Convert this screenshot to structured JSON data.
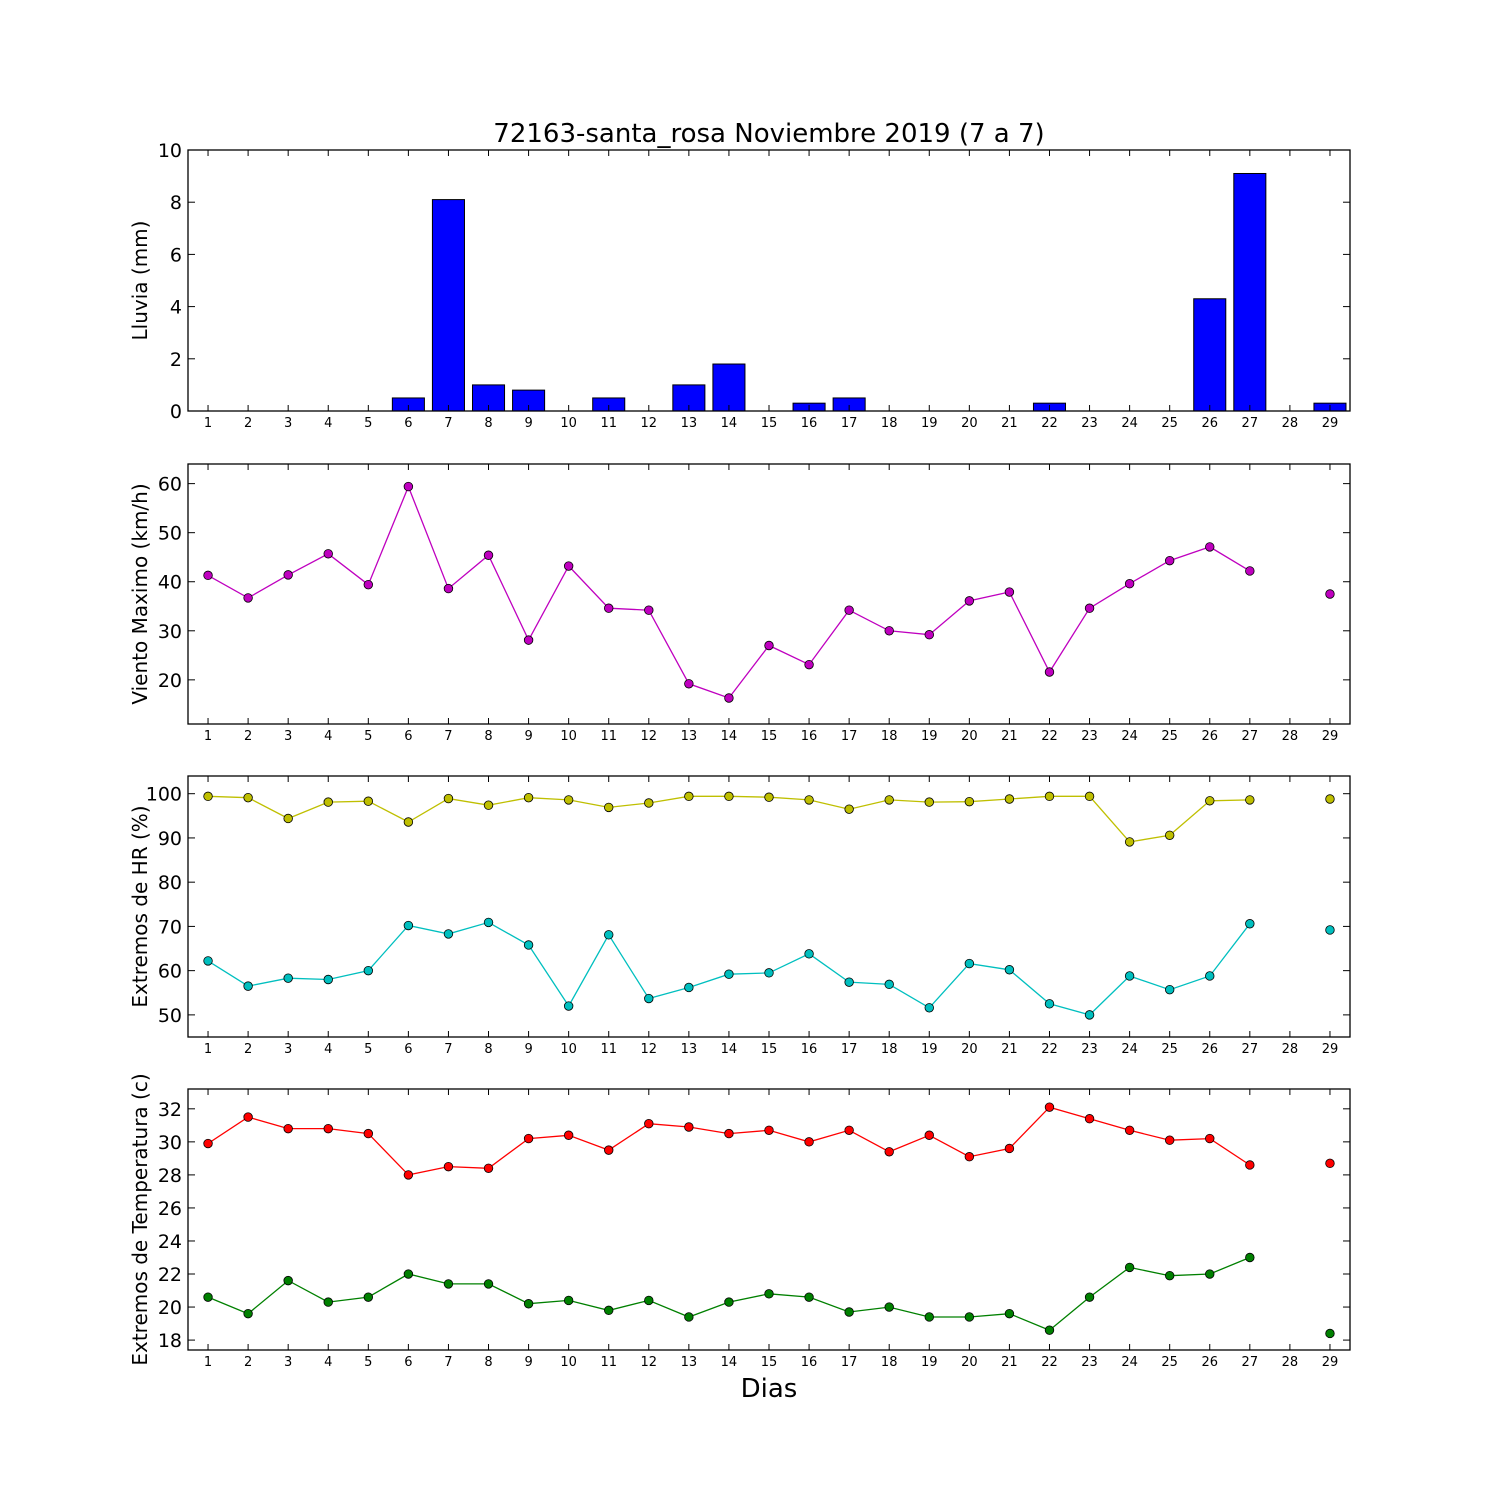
{
  "chart_data": {
    "title": "72163-santa_rosa Noviembre 2019  (7 a 7)",
    "xlabel": "Dias",
    "days": [
      1,
      2,
      3,
      4,
      5,
      6,
      7,
      8,
      9,
      10,
      11,
      12,
      13,
      14,
      15,
      16,
      17,
      18,
      19,
      20,
      21,
      22,
      23,
      24,
      25,
      26,
      27,
      28,
      29
    ],
    "panels": [
      {
        "id": "lluvia",
        "type": "bar",
        "ylabel": "Lluvia (mm)",
        "ylim": [
          0,
          10
        ],
        "yticks": [
          0,
          2,
          4,
          6,
          8,
          10
        ],
        "series": [
          {
            "color": "#0000ff",
            "values": [
              0,
              0,
              0,
              0,
              0,
              0.5,
              8.1,
              1.0,
              0.8,
              0,
              0.5,
              0,
              1.0,
              1.8,
              0,
              0.3,
              0.5,
              0,
              0,
              0,
              0,
              0.3,
              0,
              0,
              0,
              4.3,
              9.1,
              0,
              0.3
            ]
          }
        ]
      },
      {
        "id": "viento",
        "type": "line",
        "ylabel": "Viento Maximo (km/h)",
        "ylim": [
          11,
          64
        ],
        "yticks": [
          20,
          30,
          40,
          50,
          60
        ],
        "series": [
          {
            "color": "#bf00bf",
            "values": [
              41.3,
              36.7,
              41.4,
              45.7,
              39.4,
              59.4,
              38.6,
              45.4,
              28.1,
              43.2,
              34.6,
              34.2,
              19.2,
              16.3,
              27.0,
              23.1,
              34.2,
              30.0,
              29.2,
              36.1,
              37.9,
              21.6,
              34.6,
              39.6,
              44.3,
              47.1,
              42.2,
              null,
              37.5
            ]
          }
        ]
      },
      {
        "id": "hr",
        "type": "line",
        "ylabel": "Extremos de HR (%)",
        "ylim": [
          45,
          104
        ],
        "yticks": [
          50,
          60,
          70,
          80,
          90,
          100
        ],
        "series": [
          {
            "color": "#bfbf00",
            "values": [
              99.4,
              99.1,
              94.4,
              98.1,
              98.3,
              93.6,
              98.9,
              97.4,
              99.1,
              98.6,
              96.9,
              97.9,
              99.4,
              99.4,
              99.2,
              98.6,
              96.5,
              98.6,
              98.1,
              98.2,
              98.8,
              99.4,
              99.4,
              89.1,
              90.6,
              98.4,
              98.6,
              null,
              98.8
            ]
          },
          {
            "color": "#00bfbf",
            "values": [
              62.2,
              56.5,
              58.3,
              58.0,
              60.0,
              70.2,
              68.3,
              70.9,
              65.8,
              52.0,
              68.1,
              53.7,
              56.2,
              59.2,
              59.5,
              63.8,
              57.4,
              56.9,
              51.6,
              61.6,
              60.2,
              52.5,
              50.0,
              58.8,
              55.7,
              58.8,
              70.6,
              null,
              69.2
            ]
          }
        ]
      },
      {
        "id": "temperatura",
        "type": "line",
        "ylabel": "Extremos de Temperatura (c)",
        "ylim": [
          17.4,
          33.2
        ],
        "yticks": [
          18,
          20,
          22,
          24,
          26,
          28,
          30,
          32
        ],
        "series": [
          {
            "color": "#ff0000",
            "values": [
              29.9,
              31.5,
              30.8,
              30.8,
              30.5,
              28.0,
              28.5,
              28.4,
              30.2,
              30.4,
              29.5,
              31.1,
              30.9,
              30.5,
              30.7,
              30.0,
              30.7,
              29.4,
              30.4,
              29.1,
              29.6,
              32.1,
              31.4,
              30.7,
              30.1,
              30.2,
              28.6,
              null,
              28.7
            ]
          },
          {
            "color": "#008000",
            "values": [
              20.6,
              19.6,
              21.6,
              20.3,
              20.6,
              22.0,
              21.4,
              21.4,
              20.2,
              20.4,
              19.8,
              20.4,
              19.4,
              20.3,
              20.8,
              20.6,
              19.7,
              20.0,
              19.4,
              19.4,
              19.6,
              18.6,
              20.6,
              22.4,
              21.9,
              22.0,
              23.0,
              null,
              18.4
            ]
          }
        ]
      }
    ]
  }
}
